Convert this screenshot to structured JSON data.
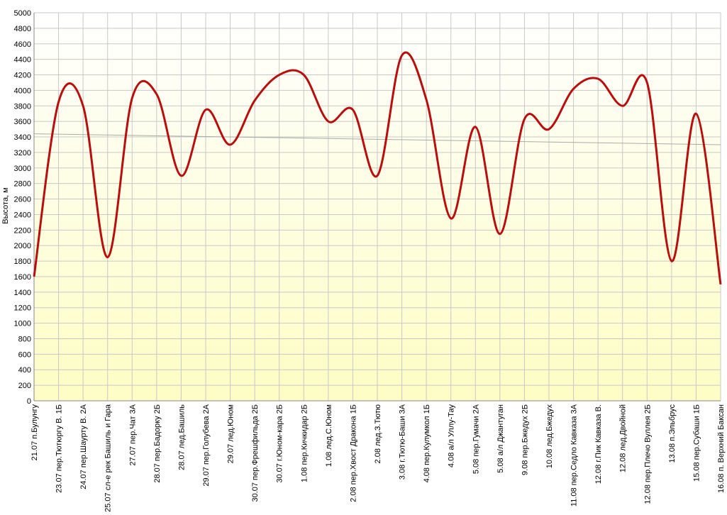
{
  "chart_data": {
    "type": "line",
    "y_label": "Высота, м",
    "categories": [
      "21.07 п.Булунгу",
      "23.07 пер.Тютюргу В. 1Б",
      "24.07 пер.Шаурту В. 2А",
      "25.07 сл-е рек Башиль и Гара",
      "27.07 пер.Чат 3А",
      "28.07 пер.Бадорку 2Б",
      "28.07 лед.Башиль",
      "29.07 пер.Голубева 2А",
      "29.07 лед.Юном",
      "30.07 пер.Фрешфильда 2Б",
      "30.07 г.Юном-кара 2Б",
      "1.08 пер.Кичкидар 2Б",
      "1.08 лед.С.Юном",
      "2.08 пер.Хвост Дракона 1Б",
      "2.08 лед.З.Тютю",
      "3.08 г.Тютю-Баши 3А",
      "4.08 пер.Кулумкол 1Б",
      "4.08 а/л Уллу-Тау",
      "5.08 пер.Гумачи 2А",
      "5.08 а/л Джантуган",
      "9.08 пер.Бжедух 2Б",
      "10.08 лед.Бжедух",
      "11.08 пер.Седло Кавказа 3А",
      "12.08 г.Пик Кавказа В.",
      "12.08 лед.Двойной",
      "12.08 пер.Плечо Вуллея 2Б",
      "13.08 п.Эльбрус",
      "15.08 пер.Субаши 1Б",
      "16.08 п. Верхний Баксан"
    ],
    "series": [
      {
        "color": "#b80e0e",
        "values": [
          1600,
          3850,
          3800,
          1850,
          3900,
          3950,
          2900,
          3750,
          3300,
          3870,
          4200,
          4200,
          3600,
          3750,
          2900,
          4450,
          3880,
          2350,
          3530,
          2150,
          3630,
          3500,
          4020,
          4150,
          3800,
          4100,
          1800,
          3700,
          1500
        ]
      }
    ],
    "trend": {
      "color": "#aaaaaa",
      "values": [
        3440,
        3300
      ]
    },
    "ylim": [
      0,
      5000
    ],
    "yticks": [
      0,
      200,
      400,
      600,
      800,
      1000,
      1200,
      1400,
      1600,
      1800,
      2000,
      2200,
      2400,
      2600,
      2800,
      3000,
      3200,
      3400,
      3600,
      3800,
      4000,
      4200,
      4400,
      4600,
      4800,
      5000
    ],
    "grid": true
  }
}
